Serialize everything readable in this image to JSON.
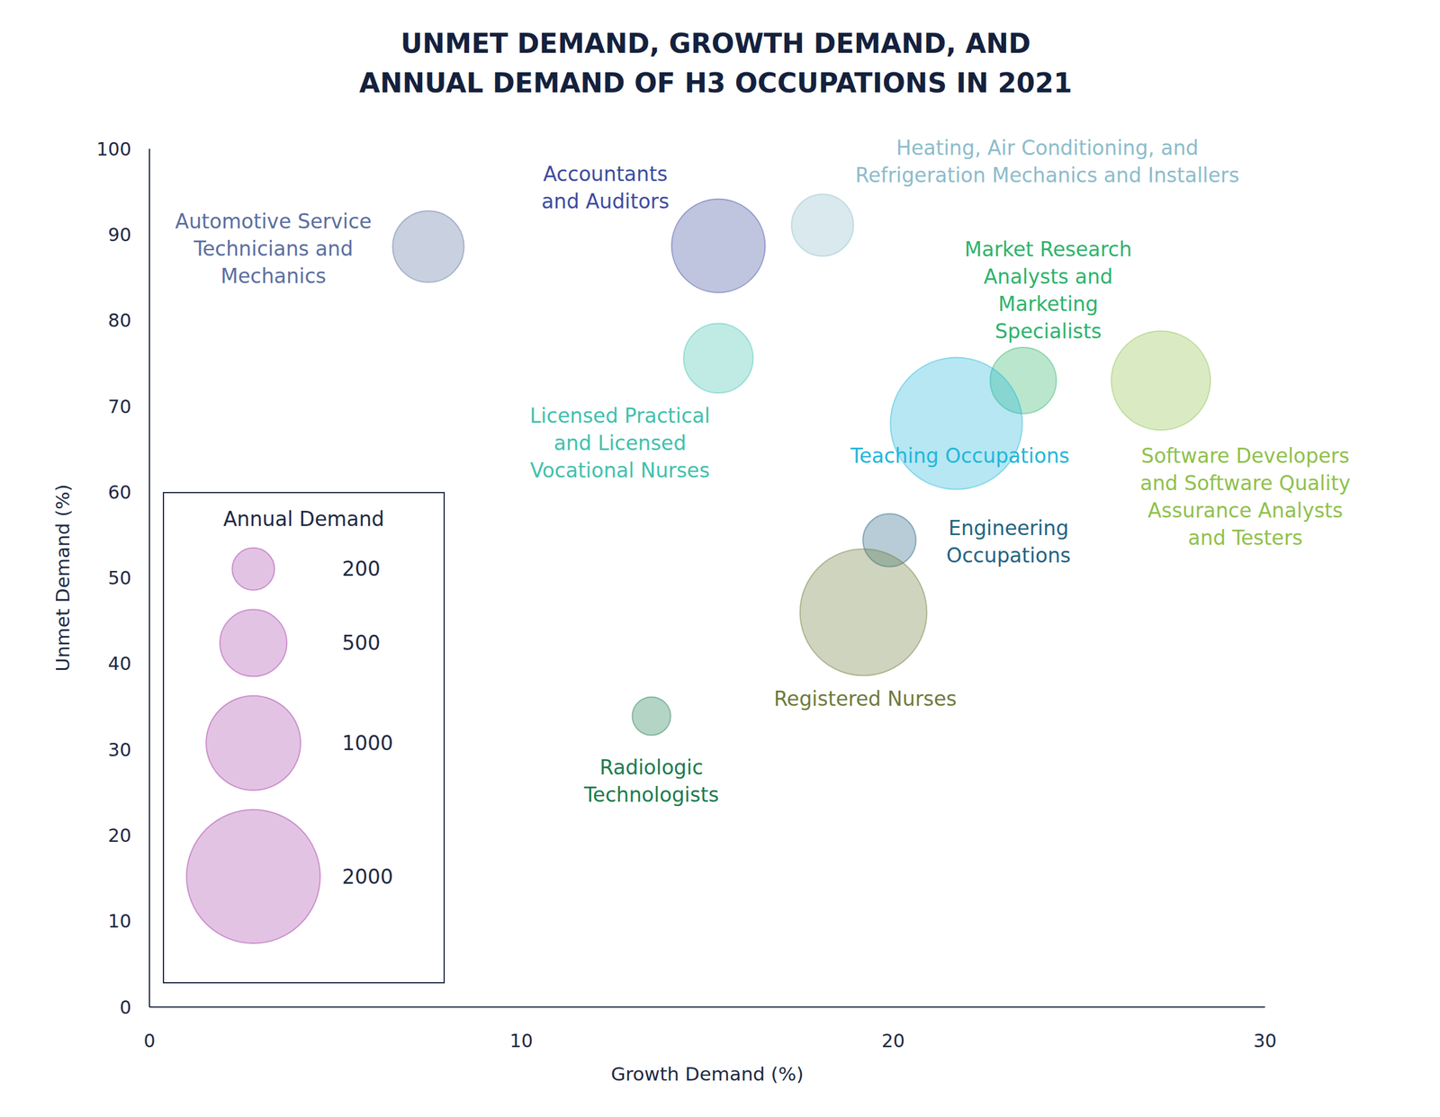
{
  "chart_data": {
    "type": "bubble",
    "title": "UNMET DEMAND, GROWTH DEMAND, AND\nANNUAL DEMAND OF H3 OCCUPATIONS IN 2021",
    "x_label": "Growth Demand (%)",
    "y_label": "Unmet Demand (%)",
    "xlim": [
      0,
      30
    ],
    "xticks": [
      0,
      10,
      20,
      30
    ],
    "ylim": [
      0,
      100
    ],
    "yticks": [
      0,
      10,
      20,
      30,
      40,
      50,
      60,
      70,
      80,
      90,
      100
    ],
    "grid": false,
    "series": [
      {
        "name": "Automotive Service\nTechnicians and\nMechanics",
        "color": "#5b6f9e",
        "x": [
          7.5
        ],
        "values": [
          88.6
        ],
        "sizes": [
          570
        ]
      },
      {
        "name": "Accountants\nand Auditors",
        "color": "#3d4b9f",
        "x": [
          15.3
        ],
        "values": [
          88.7
        ],
        "sizes": [
          980
        ]
      },
      {
        "name": "Heating, Air Conditioning, and\nRefrigeration Mechanics and Installers",
        "color": "#8cbccb",
        "x": [
          18.1
        ],
        "values": [
          91.1
        ],
        "sizes": [
          430
        ]
      },
      {
        "name": "Market Research\nAnalysts and\nMarketing\nSpecialists",
        "color": "#2eb36b",
        "x": [
          23.5
        ],
        "values": [
          73.0
        ],
        "sizes": [
          490
        ]
      },
      {
        "name": "Licensed Practical\nand Licensed\nVocational Nurses",
        "color": "#3fc1ad",
        "x": [
          15.3
        ],
        "values": [
          75.6
        ],
        "sizes": [
          540
        ]
      },
      {
        "name": "Teaching Occupations",
        "color": "#22b6da",
        "x": [
          21.7
        ],
        "values": [
          68.0
        ],
        "sizes": [
          1950
        ]
      },
      {
        "name": "Software Developers\nand Software Quality\nAssurance Analysts\nand Testers",
        "color": "#8fc14b",
        "x": [
          27.2
        ],
        "values": [
          73.0
        ],
        "sizes": [
          1100
        ]
      },
      {
        "name": "Engineering\nOccupations",
        "color": "#236482",
        "x": [
          19.9
        ],
        "values": [
          54.4
        ],
        "sizes": [
          315
        ]
      },
      {
        "name": "Registered Nurses",
        "color": "#6e7b3b",
        "x": [
          19.2
        ],
        "values": [
          46.0
        ],
        "sizes": [
          1800
        ]
      },
      {
        "name": "Radiologic\nTechnologists",
        "color": "#1c7b50",
        "x": [
          13.5
        ],
        "values": [
          33.9
        ],
        "sizes": [
          165
        ]
      }
    ],
    "size_legend": {
      "title": "Annual Demand",
      "values": [
        200,
        500,
        1000,
        2000
      ],
      "color": "#c27bc3"
    }
  }
}
